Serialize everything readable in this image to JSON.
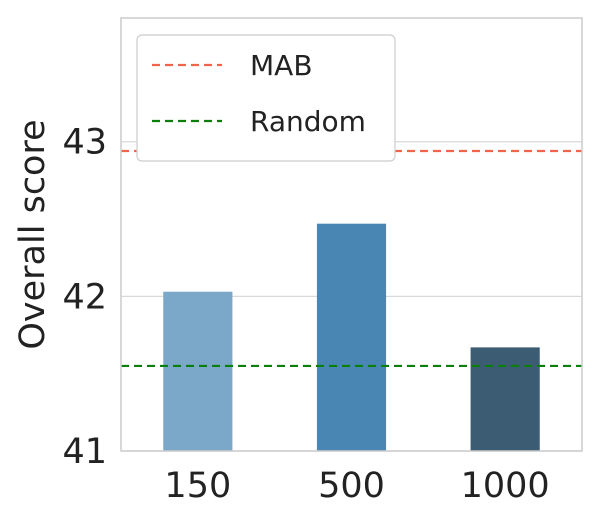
{
  "chart_data": {
    "type": "bar",
    "categories": [
      "150",
      "500",
      "1000"
    ],
    "values": [
      42.03,
      42.47,
      41.67
    ],
    "bar_colors": [
      "#7ba7c9",
      "#4a86b4",
      "#3c5c73"
    ],
    "xlabel": "",
    "ylabel": "Overall score",
    "ylim": [
      41,
      43.8
    ],
    "yticks": [
      "41",
      "42",
      "43"
    ],
    "grid": true,
    "legend_position": "top-left",
    "reference_lines": [
      {
        "name": "MAB",
        "value": 42.94,
        "color": "#f0644b",
        "style": "dashed"
      },
      {
        "name": "Random",
        "value": 41.55,
        "color": "#0a7f0a",
        "style": "dashed"
      }
    ]
  }
}
